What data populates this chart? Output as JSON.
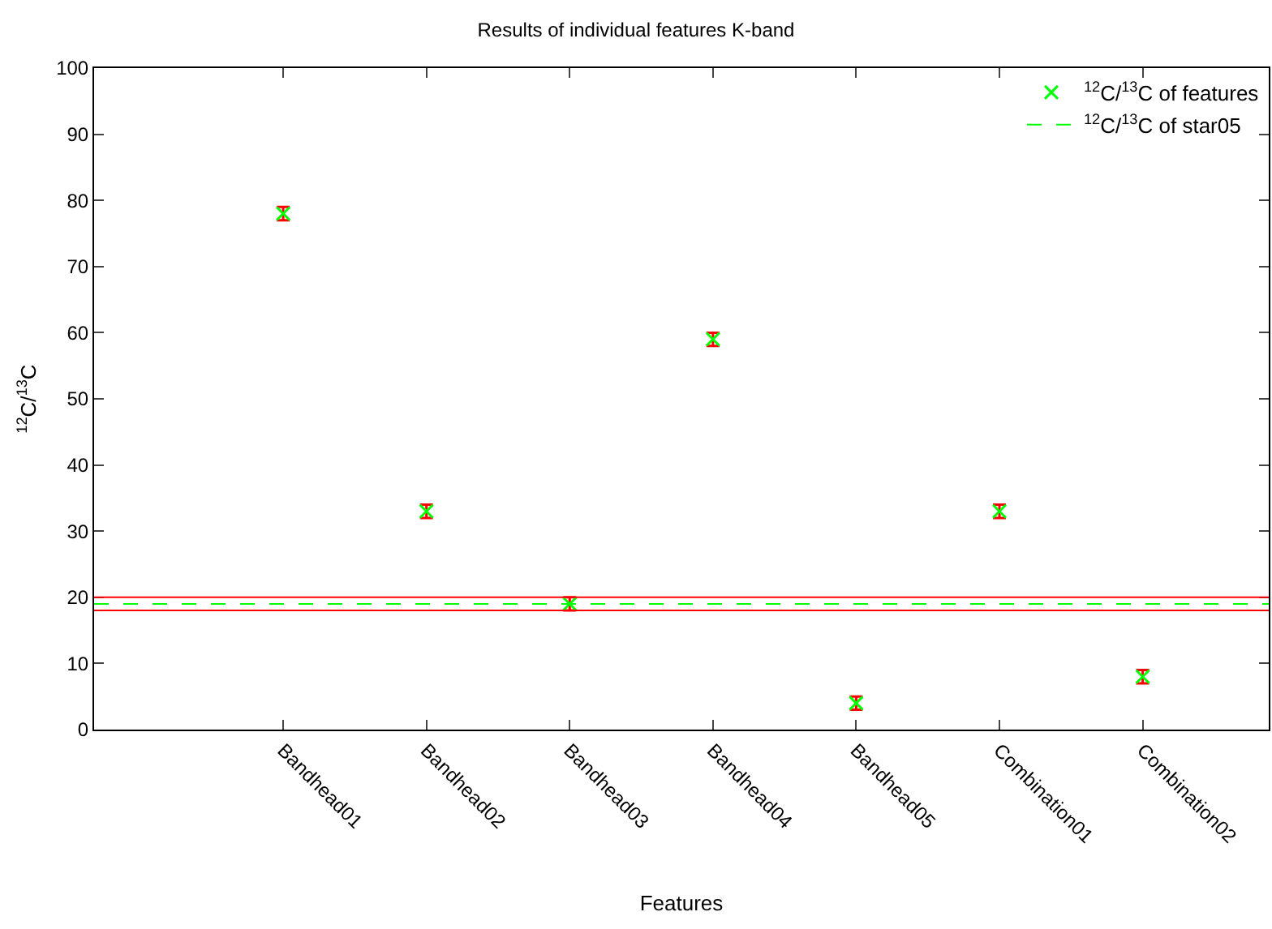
{
  "chart_data": {
    "type": "scatter",
    "title": "Results of individual features K-band",
    "xlabel": "Features",
    "ylabel": "$^{12}$C/$^{13}$C",
    "categories": [
      "Bandhead01",
      "Bandhead02",
      "Bandhead03",
      "Bandhead04",
      "Bandhead05",
      "Combination01",
      "Combination02"
    ],
    "series": [
      {
        "name": "$^{12}$C/$^{13}$C of features",
        "color": "#00ff00",
        "values": [
          78,
          33,
          19,
          59,
          4,
          33,
          8
        ],
        "errors": [
          1,
          1,
          1,
          1,
          1,
          1,
          1
        ]
      }
    ],
    "ref_lines": [
      {
        "axis": "y",
        "value": 19,
        "label": "$^{12}$C/$^{13}$C of star05",
        "color": "#00ff00",
        "line_style": "dashed"
      },
      {
        "axis": "y",
        "value": 20,
        "color": "#ff0000",
        "line_style": "solid"
      },
      {
        "axis": "y",
        "value": 18,
        "color": "#ff0000",
        "line_style": "solid"
      }
    ],
    "ylim": [
      0,
      100
    ],
    "yticks": [
      0,
      10,
      20,
      30,
      40,
      50,
      60,
      70,
      80,
      90,
      100
    ],
    "grid": false,
    "legend": "top right",
    "marker": "cross"
  }
}
